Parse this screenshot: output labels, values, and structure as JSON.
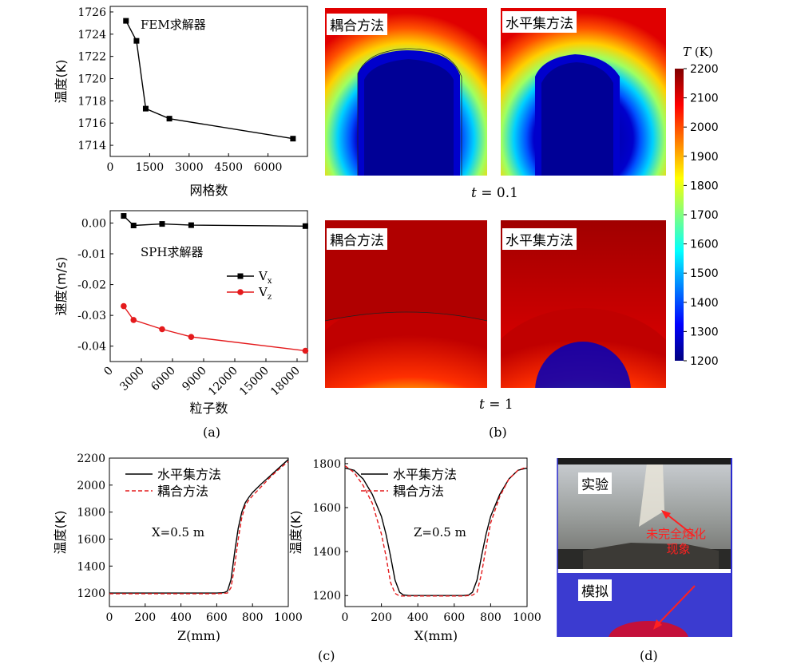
{
  "colors": {
    "black": "#000000",
    "red": "#e41a1c",
    "bg": "#ffffff",
    "cmap": [
      "#00007f",
      "#0000ff",
      "#007fff",
      "#00ffff",
      "#7fff7f",
      "#ffff00",
      "#ff7f00",
      "#ff0000",
      "#7f0000"
    ]
  },
  "captions": {
    "a": "(a)",
    "b": "(b)",
    "c": "(c)",
    "d": "(d)"
  },
  "panel_b": {
    "label_coupled": "耦合方法",
    "label_levelset": "水平集方法",
    "t1_var": "t",
    "t1_text": " = 0.1",
    "t2_var": "t",
    "t2_text": " = 1",
    "colorbar_var": "T",
    "colorbar_unit": " (K)",
    "colorbar_ticks": [
      "2200",
      "2100",
      "2000",
      "1900",
      "1800",
      "1700",
      "1600",
      "1500",
      "1400",
      "1300",
      "1200"
    ]
  },
  "panel_d": {
    "label_experiment": "实验",
    "label_simulation": "模拟",
    "annotation_line1": "未完全熔化",
    "annotation_line2": "现象"
  },
  "chart_data": [
    {
      "id": "a_top",
      "type": "line",
      "annotation": "FEM求解器",
      "xlabel": "网格数",
      "ylabel": "温度(K)",
      "xlim": [
        0,
        7500
      ],
      "ylim": [
        1713,
        1726.5
      ],
      "xticks": [
        "0",
        "1500",
        "3000",
        "4500",
        "6000"
      ],
      "xtick_values": [
        0,
        1500,
        3000,
        4500,
        6000
      ],
      "yticks": [
        "1714",
        "1716",
        "1718",
        "1720",
        "1722",
        "1724",
        "1726"
      ],
      "ytick_values": [
        1714,
        1716,
        1718,
        1720,
        1722,
        1724,
        1726
      ],
      "series": [
        {
          "name": "FEM",
          "x": [
            600,
            1000,
            1350,
            2250,
            6950
          ],
          "y": [
            1725.2,
            1723.4,
            1717.3,
            1716.4,
            1714.6
          ]
        }
      ]
    },
    {
      "id": "a_bottom",
      "type": "line",
      "annotation": "SPH求解器",
      "xlabel": "粒子数",
      "ylabel": "速度(m/s)",
      "xlim": [
        0,
        19000
      ],
      "ylim": [
        -0.045,
        0.004
      ],
      "xticks": [
        "0",
        "3000",
        "6000",
        "9000",
        "12000",
        "15000",
        "18000"
      ],
      "xtick_values": [
        0,
        3000,
        6000,
        9000,
        12000,
        15000,
        18000
      ],
      "yticks": [
        "0.00",
        "-0.01",
        "-0.02",
        "-0.03",
        "-0.04"
      ],
      "ytick_values": [
        0,
        -0.01,
        -0.02,
        -0.03,
        -0.04
      ],
      "legend": [
        "Vx",
        "Vz"
      ],
      "series": [
        {
          "name": "Vx",
          "x": [
            1300,
            2250,
            5000,
            7800,
            18800
          ],
          "y": [
            0.0023,
            -0.0008,
            -0.0003,
            -0.0007,
            -0.001
          ]
        },
        {
          "name": "Vz",
          "x": [
            1300,
            2250,
            5000,
            7800,
            18800
          ],
          "y": [
            -0.027,
            -0.0315,
            -0.0345,
            -0.037,
            -0.0415
          ]
        }
      ]
    },
    {
      "id": "c_left",
      "type": "line",
      "annotation": "X=0.5  m",
      "xlabel": "Z(mm)",
      "ylabel": "温度(K)",
      "xlim": [
        0,
        1000
      ],
      "ylim": [
        1100,
        2200
      ],
      "xticks": [
        "0",
        "200",
        "400",
        "600",
        "800",
        "1000"
      ],
      "xtick_values": [
        0,
        200,
        400,
        600,
        800,
        1000
      ],
      "yticks": [
        "1200",
        "1400",
        "1600",
        "1800",
        "2000",
        "2200"
      ],
      "ytick_values": [
        1200,
        1400,
        1600,
        1800,
        2000,
        2200
      ],
      "legend": [
        "水平集方法",
        "耦合方法"
      ],
      "series": [
        {
          "name": "水平集方法",
          "x": [
            0,
            600,
            640,
            660,
            680,
            700,
            720,
            740,
            760,
            780,
            800,
            850,
            900,
            950,
            1000
          ],
          "y": [
            1200,
            1200,
            1203,
            1215,
            1300,
            1500,
            1680,
            1800,
            1870,
            1910,
            1945,
            2010,
            2070,
            2130,
            2190
          ]
        },
        {
          "name": "耦合方法",
          "x": [
            0,
            600,
            660,
            680,
            700,
            720,
            740,
            760,
            780,
            800,
            850,
            900,
            950,
            1000
          ],
          "y": [
            1195,
            1195,
            1200,
            1240,
            1400,
            1600,
            1760,
            1850,
            1890,
            1920,
            1990,
            2060,
            2120,
            2175
          ]
        }
      ]
    },
    {
      "id": "c_right",
      "type": "line",
      "annotation": "Z=0.5  m",
      "xlabel": "X(mm)",
      "ylabel": "温度(K)",
      "xlim": [
        0,
        1000
      ],
      "ylim": [
        1150,
        1825
      ],
      "xticks": [
        "0",
        "200",
        "400",
        "600",
        "800",
        "1000"
      ],
      "xtick_values": [
        0,
        200,
        400,
        600,
        800,
        1000
      ],
      "yticks": [
        "1200",
        "1400",
        "1600",
        "1800"
      ],
      "ytick_values": [
        1200,
        1400,
        1600,
        1800
      ],
      "legend": [
        "水平集方法",
        "耦合方法"
      ],
      "series": [
        {
          "name": "水平集方法",
          "x": [
            0,
            50,
            100,
            150,
            200,
            225,
            250,
            275,
            300,
            320,
            350,
            400,
            500,
            600,
            650,
            680,
            700,
            725,
            750,
            775,
            800,
            850,
            900,
            950,
            1000
          ],
          "y": [
            1780,
            1770,
            1730,
            1660,
            1560,
            1480,
            1380,
            1270,
            1215,
            1203,
            1200,
            1200,
            1200,
            1200,
            1200,
            1203,
            1215,
            1270,
            1380,
            1480,
            1560,
            1660,
            1730,
            1770,
            1780
          ]
        },
        {
          "name": "耦合方法",
          "x": [
            0,
            50,
            100,
            150,
            200,
            225,
            250,
            275,
            300,
            350,
            400,
            500,
            600,
            650,
            700,
            725,
            750,
            775,
            800,
            850,
            900,
            950,
            1000
          ],
          "y": [
            1790,
            1760,
            1700,
            1620,
            1480,
            1380,
            1260,
            1210,
            1198,
            1198,
            1198,
            1198,
            1198,
            1198,
            1202,
            1215,
            1300,
            1420,
            1530,
            1650,
            1730,
            1770,
            1785
          ]
        }
      ]
    }
  ]
}
